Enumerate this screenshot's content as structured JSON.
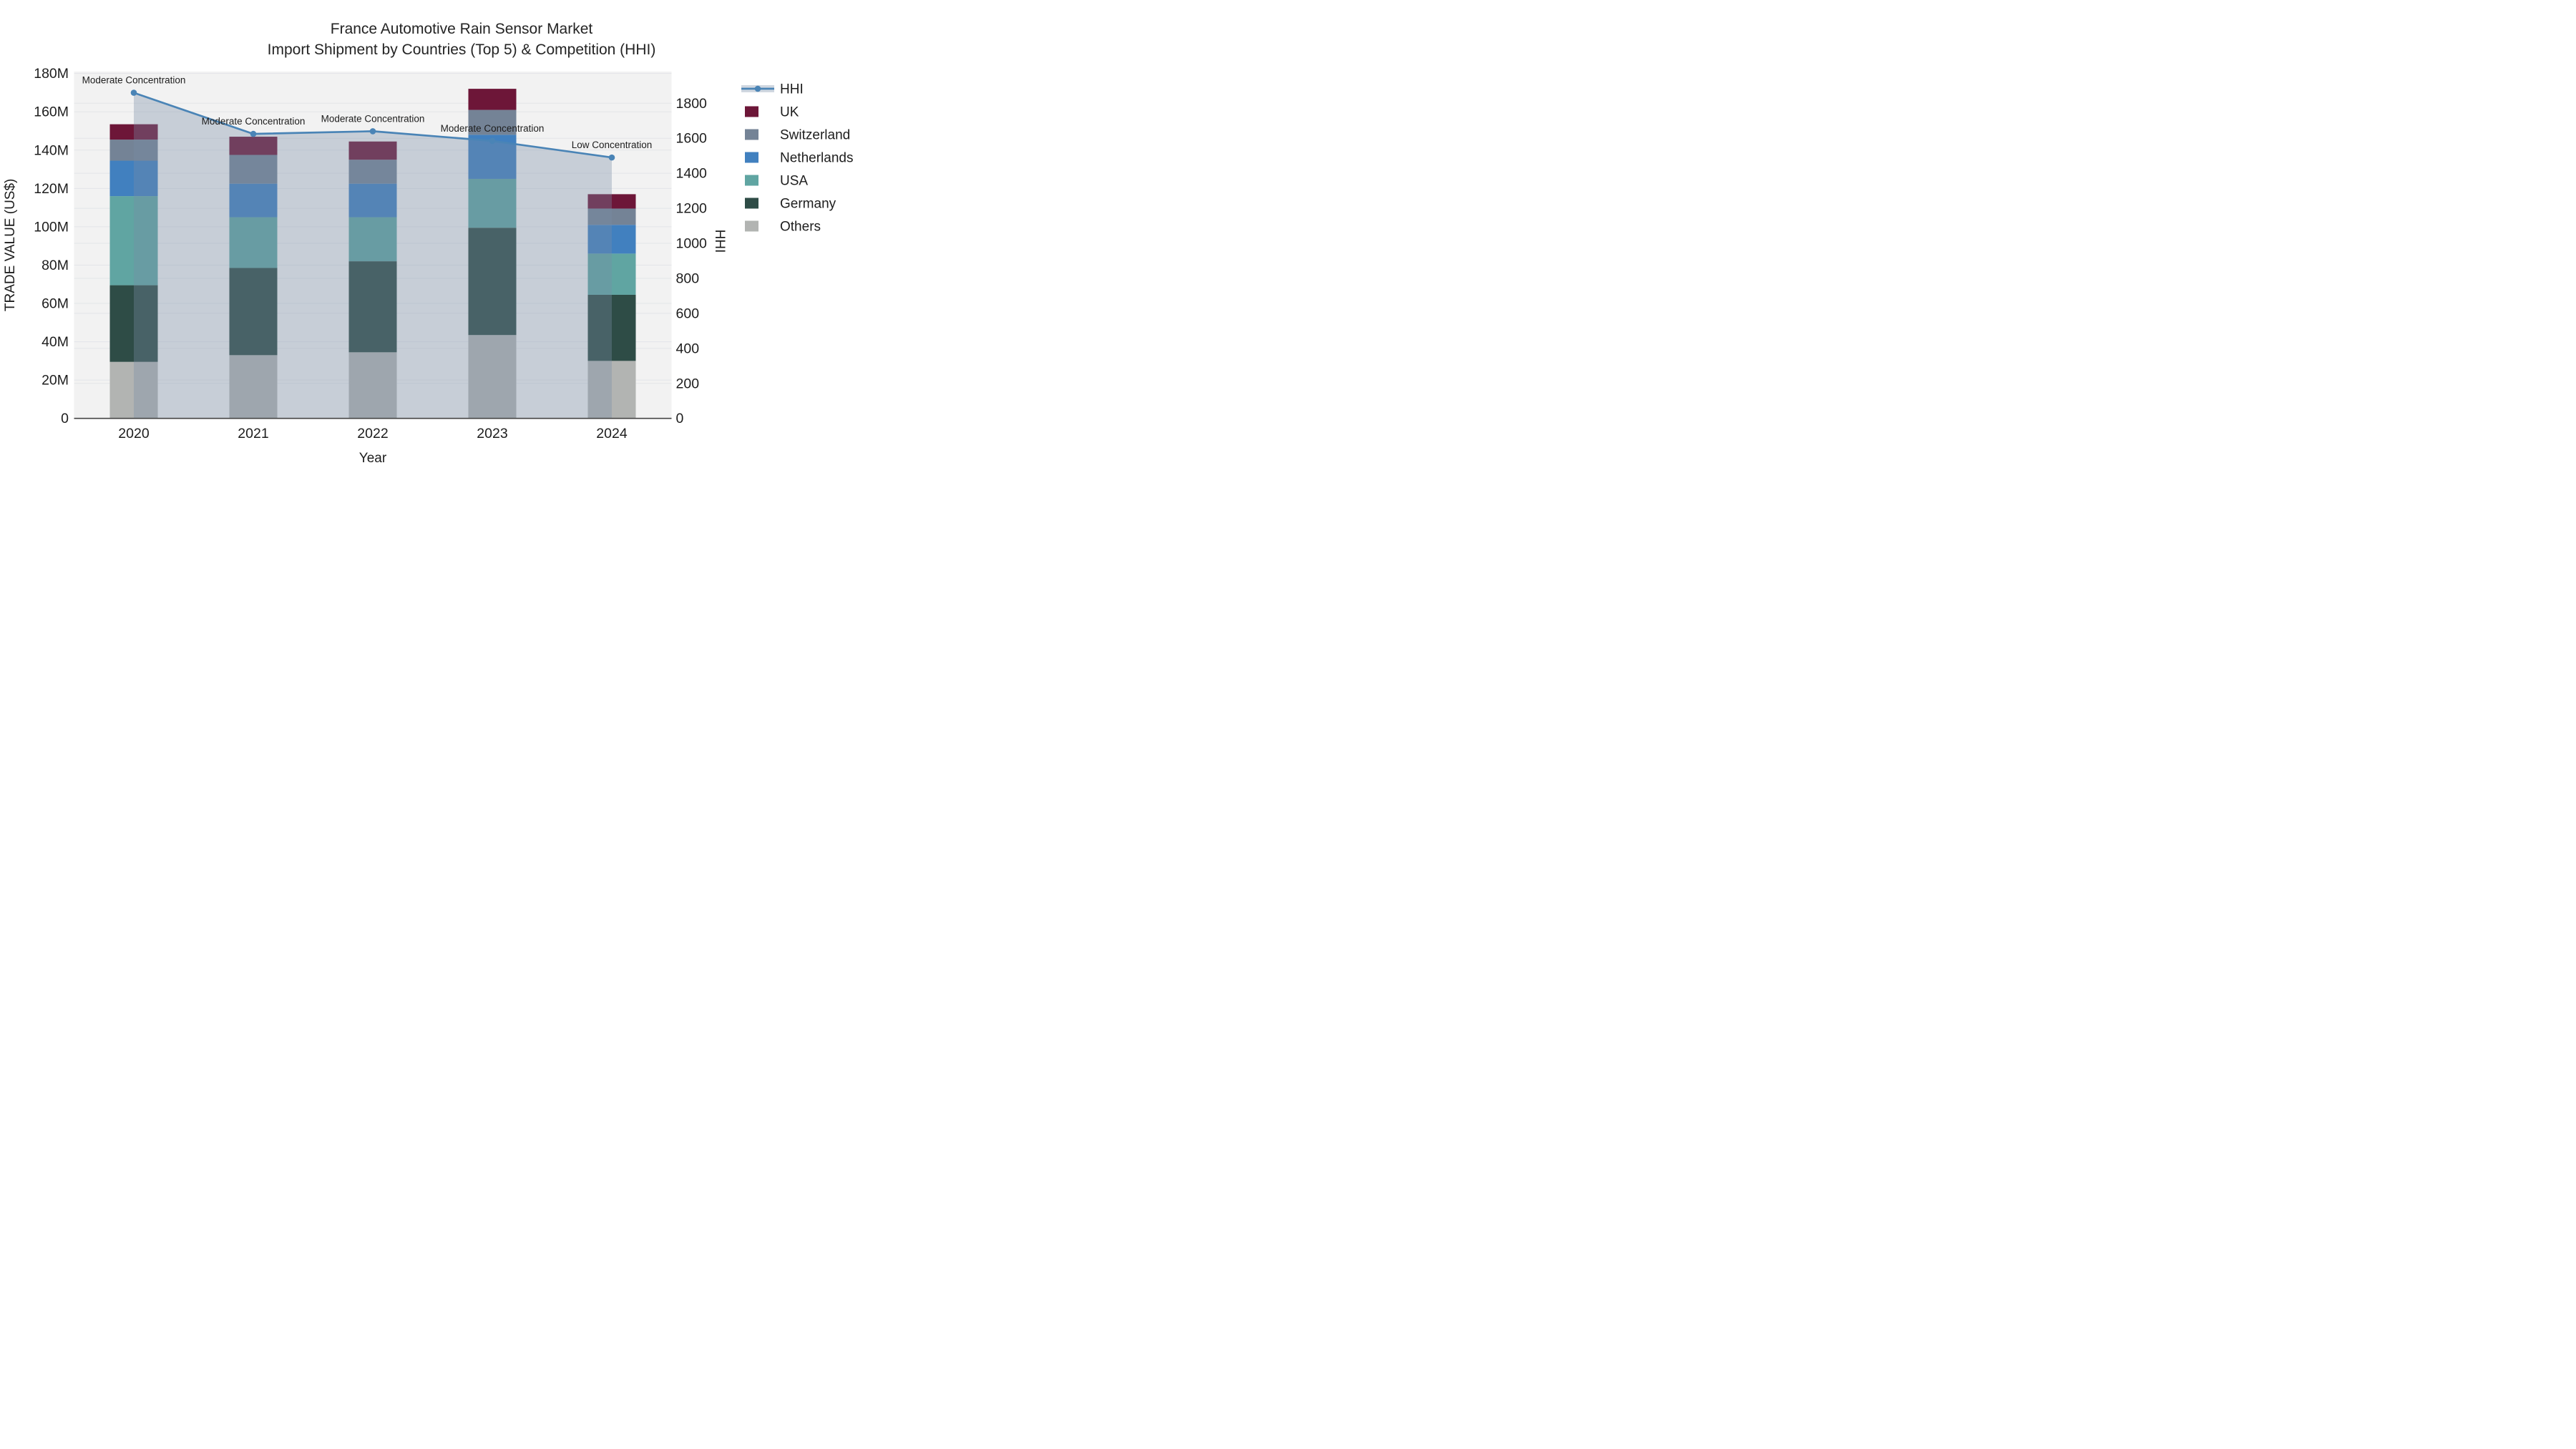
{
  "title": {
    "line1": "France Automotive Rain Sensor Market",
    "line2": "Import Shipment by Countries (Top 5) & Competition (HHI)"
  },
  "legend": {
    "items": [
      {
        "label": "HHI",
        "symbol": "line",
        "color": "#4a84b6"
      },
      {
        "label": "UK",
        "symbol": "square",
        "color": "#6d1638"
      },
      {
        "label": "Switzerland",
        "symbol": "square",
        "color": "#748396"
      },
      {
        "label": "Netherlands",
        "symbol": "square",
        "color": "#4180bf"
      },
      {
        "label": "USA",
        "symbol": "square",
        "color": "#60a5a2"
      },
      {
        "label": "Germany",
        "symbol": "square",
        "color": "#2e4c46"
      },
      {
        "label": "Others",
        "symbol": "square",
        "color": "#b2b4b2"
      }
    ]
  },
  "chart_data": {
    "type": "stacked-bar+line",
    "title": "France Automotive Rain Sensor Market — Import Shipment by Countries (Top 5) & Competition (HHI)",
    "categories": [
      "2020",
      "2021",
      "2022",
      "2023",
      "2024"
    ],
    "x_title": "Year",
    "bar_value_unit": "million US$ (left axis)",
    "stack_note": "bar series stacked bottom-to-top in listed order",
    "series": [
      {
        "name": "Others",
        "color": "#b2b4b2",
        "values": [
          29.5,
          33,
          34.5,
          43.5,
          30
        ]
      },
      {
        "name": "Germany",
        "color": "#2e4c46",
        "values": [
          40,
          45.5,
          47.5,
          56,
          34.5
        ]
      },
      {
        "name": "USA",
        "color": "#60a5a2",
        "values": [
          46.5,
          26.5,
          23,
          25.5,
          21.5
        ]
      },
      {
        "name": "Netherlands",
        "color": "#4180bf",
        "values": [
          18.5,
          17.5,
          17.5,
          23,
          15
        ]
      },
      {
        "name": "Switzerland",
        "color": "#748396",
        "values": [
          11,
          15,
          12.5,
          13,
          8.5
        ]
      },
      {
        "name": "UK",
        "color": "#6d1638",
        "values": [
          8,
          9.5,
          9.5,
          11,
          7.5
        ]
      }
    ],
    "bar_totals": [
      153.5,
      147,
      144.5,
      172,
      117
    ],
    "line_series": {
      "name": "HHI",
      "axis": "right",
      "color": "#4a84b6",
      "fill_color": "rgba(120,140,165,0.35)",
      "values": [
        1860,
        1625,
        1640,
        1585,
        1490
      ]
    },
    "annotations": [
      {
        "x": "2020",
        "text": "Moderate Concentration"
      },
      {
        "x": "2021",
        "text": "Moderate Concentration"
      },
      {
        "x": "2022",
        "text": "Moderate Concentration"
      },
      {
        "x": "2023",
        "text": "Moderate Concentration"
      },
      {
        "x": "2024",
        "text": "Low Concentration"
      }
    ],
    "y_left": {
      "title": "TRADE VALUE (US$)",
      "tick_labels": [
        "0",
        "20M",
        "40M",
        "60M",
        "80M",
        "100M",
        "120M",
        "140M",
        "160M",
        "180M"
      ],
      "tick_values": [
        0,
        20,
        40,
        60,
        80,
        100,
        120,
        140,
        160,
        180
      ],
      "max_value": 181
    },
    "y_right": {
      "title": "HHI",
      "tick_labels": [
        "0",
        "200",
        "400",
        "600",
        "800",
        "1000",
        "1200",
        "1400",
        "1600",
        "1800"
      ],
      "tick_values": [
        0,
        200,
        400,
        600,
        800,
        1000,
        1200,
        1400,
        1600,
        1800
      ],
      "max_value": 1981
    },
    "layout": {
      "legend_position": "right",
      "grid": true,
      "plot_background": "#f2f2f2",
      "grid_color": "#e3e5e8",
      "axis_line_color": "#444444",
      "text_color": "#1d1d1d"
    }
  }
}
